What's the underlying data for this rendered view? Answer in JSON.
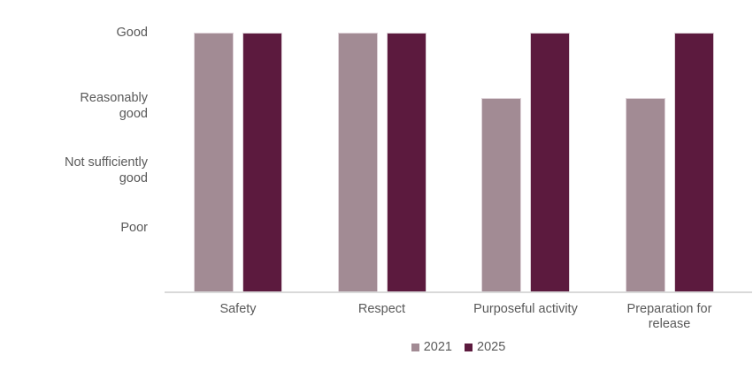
{
  "chart_data": {
    "type": "bar",
    "categories": [
      "Safety",
      "Respect",
      "Purposeful activity",
      "Preparation for\nrelease"
    ],
    "series": [
      {
        "name": "2021",
        "color": "#a28b94",
        "values": [
          4,
          4,
          3,
          3
        ]
      },
      {
        "name": "2025",
        "color": "#5c1a3e",
        "values": [
          4,
          4,
          4,
          4
        ]
      }
    ],
    "y_axis": {
      "min": 0,
      "max": 4,
      "ticks": [
        {
          "value": 4,
          "label": "Good"
        },
        {
          "value": 3,
          "label": "Reasonably\ngood"
        },
        {
          "value": 2,
          "label": "Not sufficiently\ngood"
        },
        {
          "value": 1,
          "label": "Poor"
        }
      ]
    },
    "title": "",
    "xlabel": "",
    "ylabel": "",
    "grid": false,
    "legend_position": "bottom-center",
    "legend": [
      "2021",
      "2025"
    ]
  },
  "colors": {
    "background": "#ffffff",
    "axis_line": "#d9d9d9",
    "text": "#595959",
    "series_2021": "#a28b94",
    "series_2025": "#5c1a3e"
  }
}
